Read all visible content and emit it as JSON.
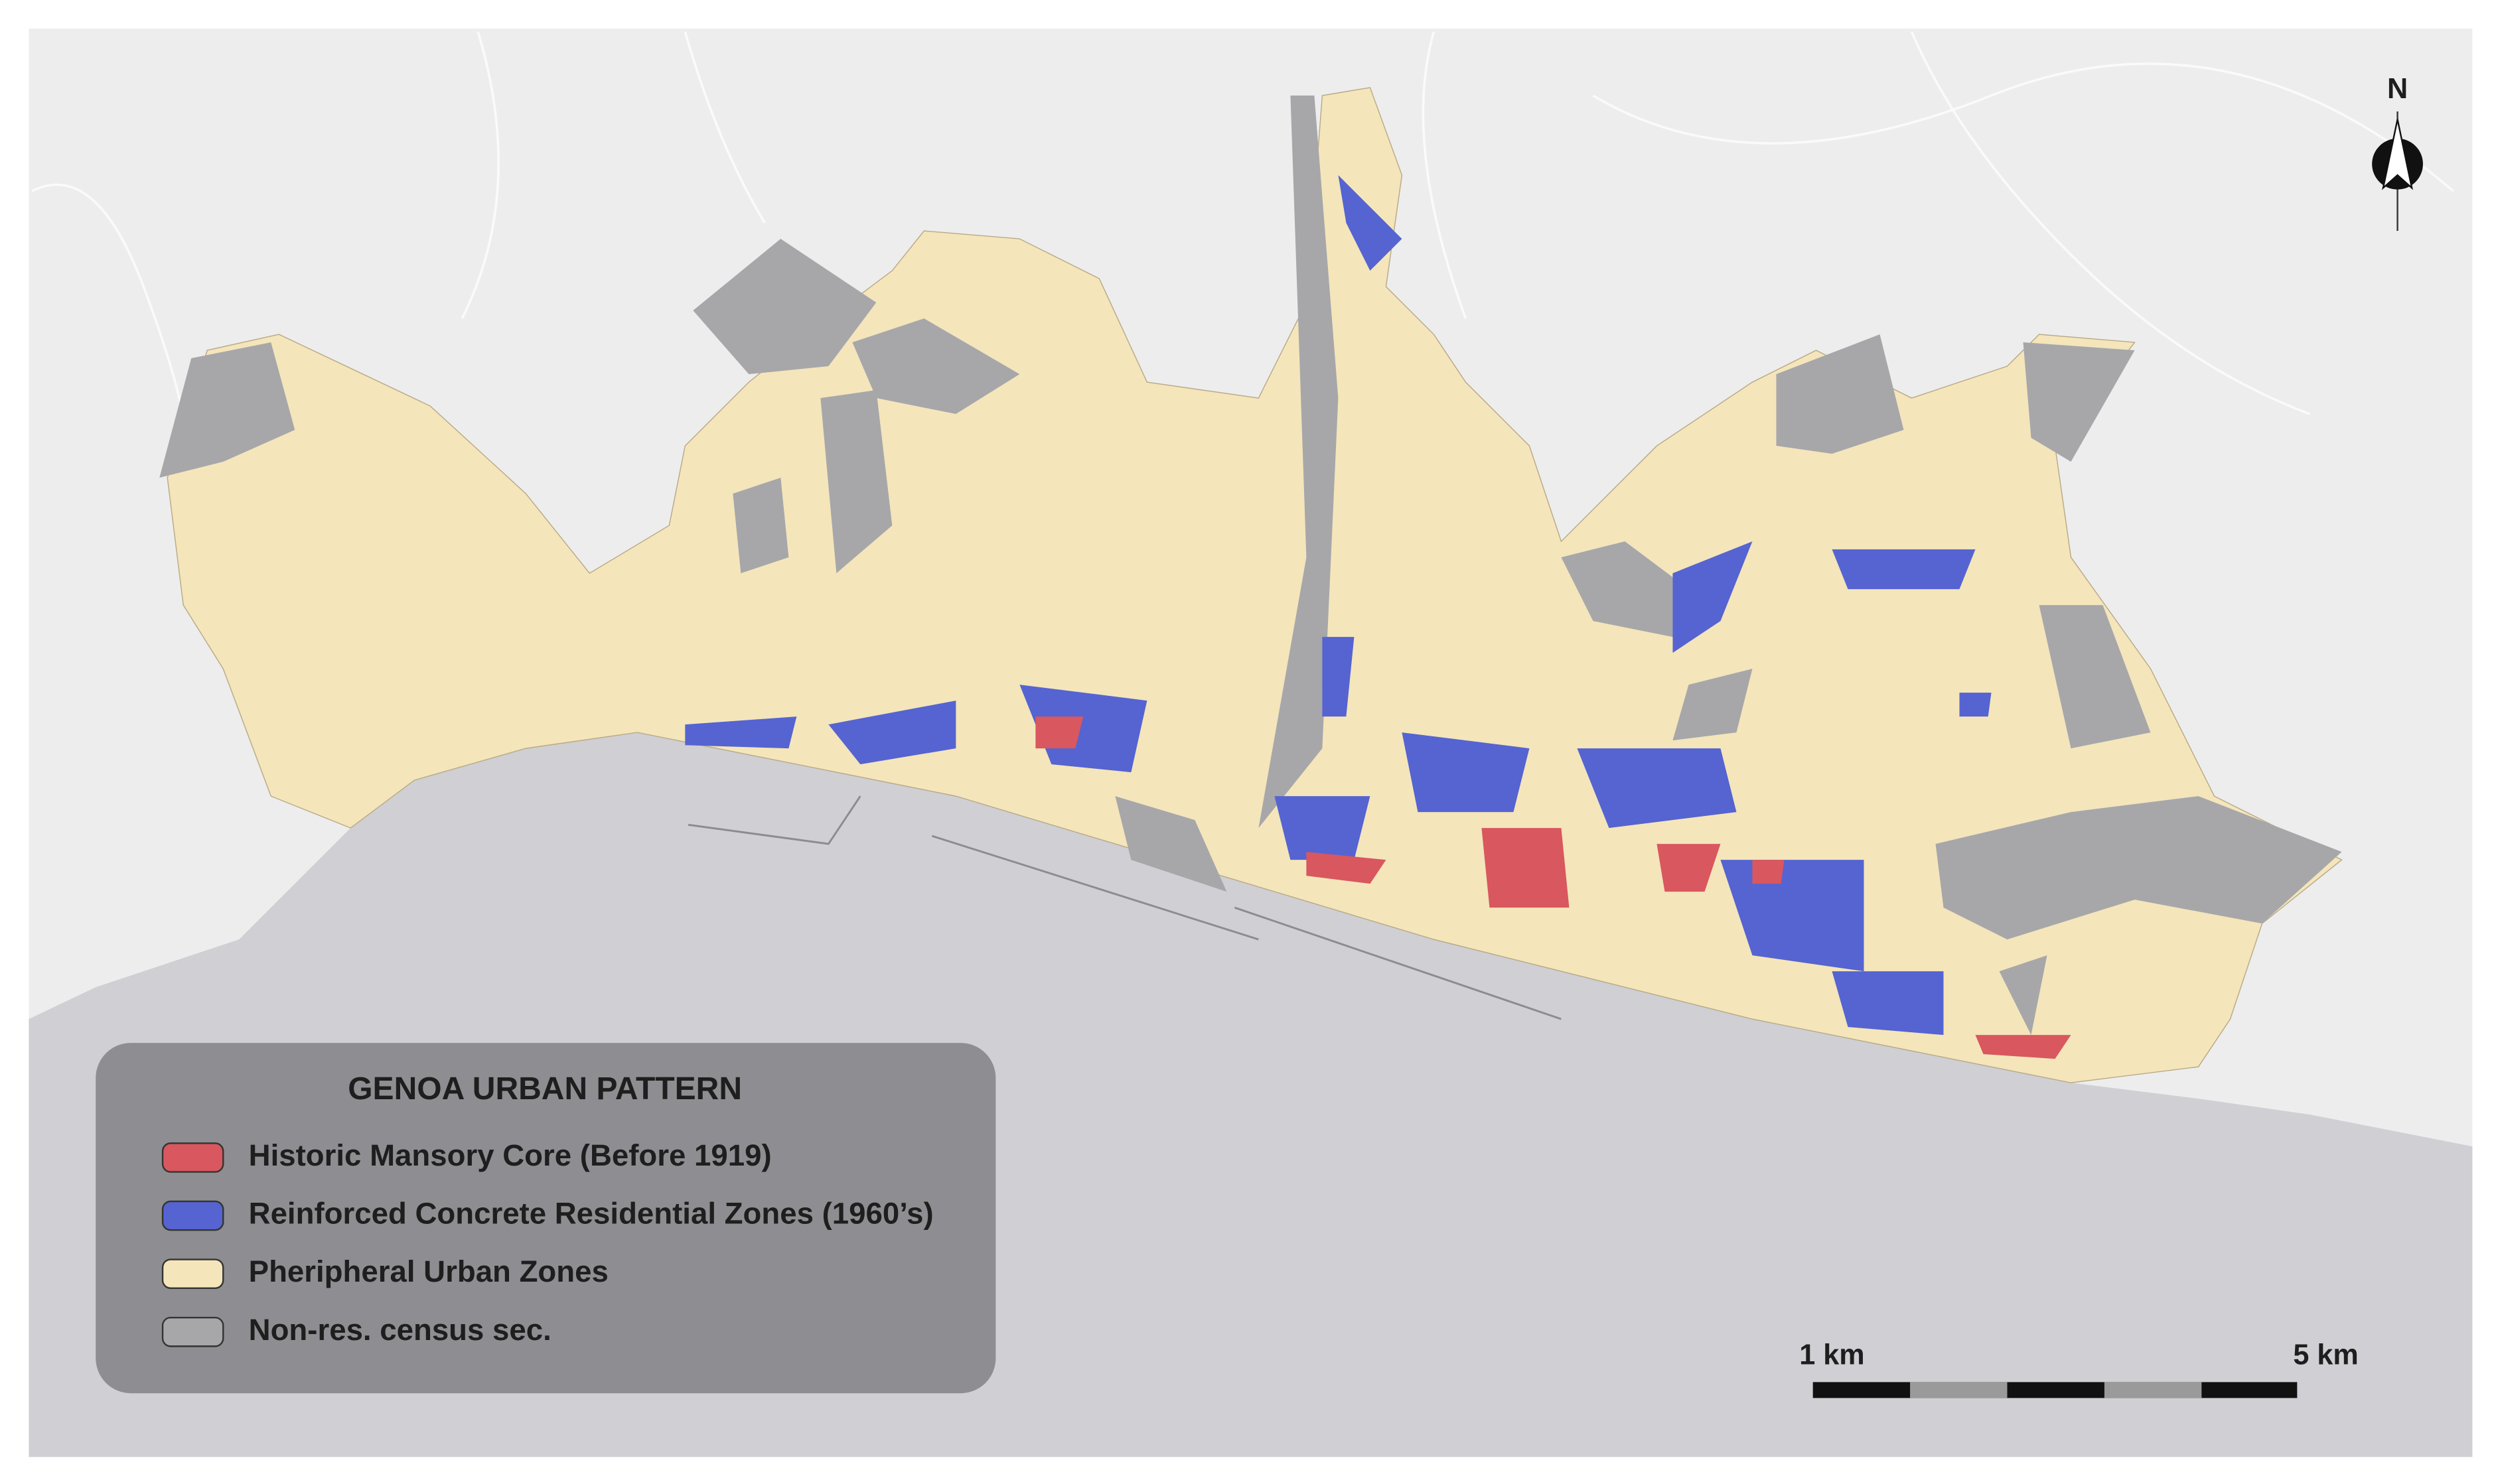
{
  "map": {
    "north_label": "N",
    "legend": {
      "title": "GENOA URBAN PATTERN",
      "items": [
        {
          "label": "Historic Mansory Core (Before 1919)",
          "color": "#d9575e"
        },
        {
          "label": "Reinforced Concrete Residential Zones (1960’s)",
          "color": "#5564d1"
        },
        {
          "label": "Pheripheral Urban Zones",
          "color": "#f4e5bb"
        },
        {
          "label": "Non-res. census sec.",
          "color": "#a7a7aa"
        }
      ]
    },
    "scale_bar": {
      "start_label": "1 km",
      "end_label": "5 km"
    }
  }
}
